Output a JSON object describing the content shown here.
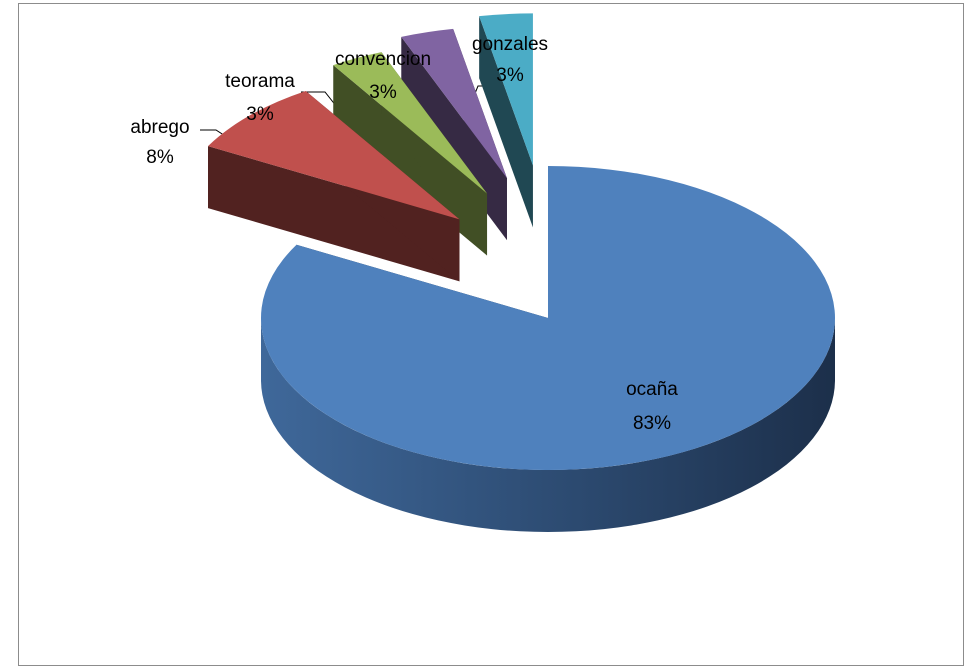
{
  "chart_data": {
    "type": "pie",
    "categories": [
      "ocaña",
      "abrego",
      "teorama",
      "convencion",
      "gonzales"
    ],
    "values": [
      83,
      8,
      3,
      3,
      3
    ],
    "value_labels": [
      "83%",
      "8%",
      "3%",
      "3%",
      "3%"
    ],
    "colors": [
      "#4f81bd",
      "#c0504d",
      "#9bbb59",
      "#8064a2",
      "#4bacc6"
    ]
  }
}
